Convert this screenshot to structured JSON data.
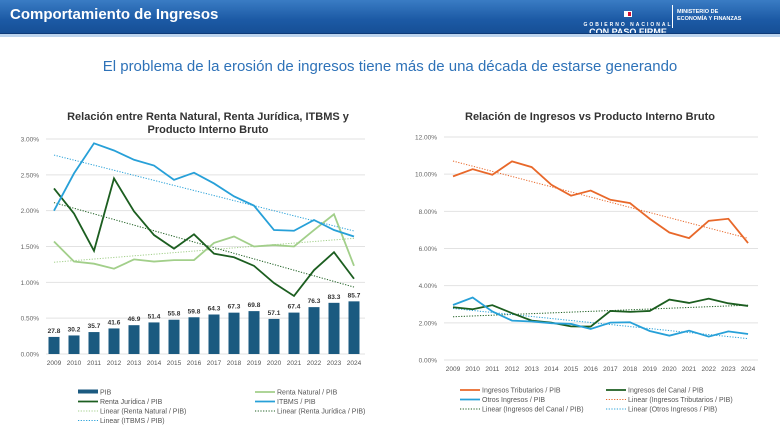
{
  "header": {
    "title": "Comportamiento de Ingresos",
    "logo_line1": "GOBIERNO NACIONAL",
    "logo_line2": "CON PASO FIRME",
    "ministry_line1": "MINISTERIO DE",
    "ministry_line2": "ECONOMÍA Y FINANZAS"
  },
  "subtitle": "El problema de la erosión de ingresos tiene más de una década de estarse generando",
  "chart_data": [
    {
      "type": "bar+line",
      "title_line1": "Relación entre Renta Natural, Renta Jurídica, ITBMS y",
      "title_line2": "Producto Interno Bruto",
      "categories": [
        "2009",
        "2010",
        "2011",
        "2012",
        "2013",
        "2014",
        "2015",
        "2016",
        "2017",
        "2018",
        "2019",
        "2020",
        "2021",
        "2022",
        "2023",
        "2024"
      ],
      "ylim": [
        0,
        3.0
      ],
      "yticks": [
        "0.00%",
        "0.50%",
        "1.00%",
        "1.50%",
        "2.00%",
        "2.50%",
        "3.00%"
      ],
      "grid": true,
      "legend": [
        {
          "label": "PIB",
          "kind": "bar",
          "color": "#1b5a80"
        },
        {
          "label": "Renta Natural / PIB",
          "kind": "line",
          "color": "#a2cf8a"
        },
        {
          "label": "Renta Jurídica / PIB",
          "kind": "line",
          "color": "#1c5e20"
        },
        {
          "label": "ITBMS / PIB",
          "kind": "line",
          "color": "#27a0d8"
        },
        {
          "label": "Linear (Renta Natural / PIB)",
          "kind": "trend",
          "color": "#a2cf8a"
        },
        {
          "label": "Linear (Renta Jurídica / PIB)",
          "kind": "trend",
          "color": "#1c5e20"
        },
        {
          "label": "Linear (ITBMS / PIB)",
          "kind": "trend",
          "color": "#27a0d8"
        }
      ],
      "bar_series": {
        "name": "PIB",
        "color": "#1b5a80",
        "values": [
          27.8,
          30.2,
          35.7,
          41.6,
          46.9,
          51.4,
          55.8,
          59.8,
          64.3,
          67.3,
          69.8,
          57.1,
          67.4,
          76.3,
          83.3,
          85.7
        ],
        "secondary_max": 350
      },
      "series": [
        {
          "name": "Renta Natural / PIB",
          "color": "#a2cf8a",
          "values": [
            1.57,
            1.29,
            1.26,
            1.19,
            1.32,
            1.29,
            1.31,
            1.31,
            1.55,
            1.64,
            1.5,
            1.52,
            1.5,
            1.73,
            1.95,
            1.23
          ]
        },
        {
          "name": "Renta Jurídica / PIB",
          "color": "#1c5e20",
          "values": [
            2.31,
            1.96,
            1.44,
            2.45,
            1.99,
            1.66,
            1.47,
            1.67,
            1.4,
            1.35,
            1.23,
            0.99,
            0.81,
            1.17,
            1.42,
            1.05
          ]
        },
        {
          "name": "ITBMS / PIB",
          "color": "#27a0d8",
          "values": [
            2.0,
            2.52,
            2.94,
            2.84,
            2.71,
            2.63,
            2.43,
            2.53,
            2.38,
            2.2,
            2.07,
            1.73,
            1.72,
            1.87,
            1.73,
            1.64
          ]
        }
      ]
    },
    {
      "type": "line",
      "title": "Relación de Ingresos vs Producto Interno Bruto",
      "categories": [
        "2009",
        "2010",
        "2011",
        "2012",
        "2013",
        "2014",
        "2015",
        "2016",
        "2017",
        "2018",
        "2019",
        "2020",
        "2021",
        "2022",
        "2023",
        "2024"
      ],
      "ylim": [
        0,
        12
      ],
      "yticks": [
        "0.00%",
        "2.00%",
        "4.00%",
        "6.00%",
        "8.00%",
        "10.00%",
        "12.00%"
      ],
      "grid": true,
      "legend": [
        {
          "label": "Ingresos Tributarios / PIB",
          "kind": "line",
          "color": "#e8682a"
        },
        {
          "label": "Ingresos del Canal / PIB",
          "kind": "line",
          "color": "#1c5e20"
        },
        {
          "label": "Otros Ingresos / PIB",
          "kind": "line",
          "color": "#27a0d8"
        },
        {
          "label": "Linear (Ingresos Tributarios / PIB)",
          "kind": "trend",
          "color": "#e8682a"
        },
        {
          "label": "Linear (Ingresos del Canal / PIB)",
          "kind": "trend",
          "color": "#1c5e20"
        },
        {
          "label": "Linear (Otros Ingresos / PIB)",
          "kind": "trend",
          "color": "#27a0d8"
        }
      ],
      "series": [
        {
          "name": "Ingresos Tributarios / PIB",
          "color": "#e8682a",
          "values": [
            9.88,
            10.27,
            9.97,
            10.69,
            10.38,
            9.43,
            8.84,
            9.12,
            8.62,
            8.44,
            7.6,
            6.86,
            6.56,
            7.49,
            7.6,
            6.29
          ]
        },
        {
          "name": "Ingresos del Canal / PIB",
          "color": "#1c5e20",
          "values": [
            2.84,
            2.73,
            2.95,
            2.52,
            2.12,
            2.01,
            1.81,
            1.8,
            2.64,
            2.59,
            2.64,
            3.25,
            3.07,
            3.3,
            3.05,
            2.91
          ]
        },
        {
          "name": "Otros Ingresos / PIB",
          "color": "#27a0d8",
          "values": [
            2.96,
            3.36,
            2.61,
            2.12,
            2.07,
            1.98,
            1.94,
            1.67,
            2.01,
            2.03,
            1.56,
            1.31,
            1.58,
            1.26,
            1.54,
            1.4
          ]
        }
      ]
    }
  ]
}
